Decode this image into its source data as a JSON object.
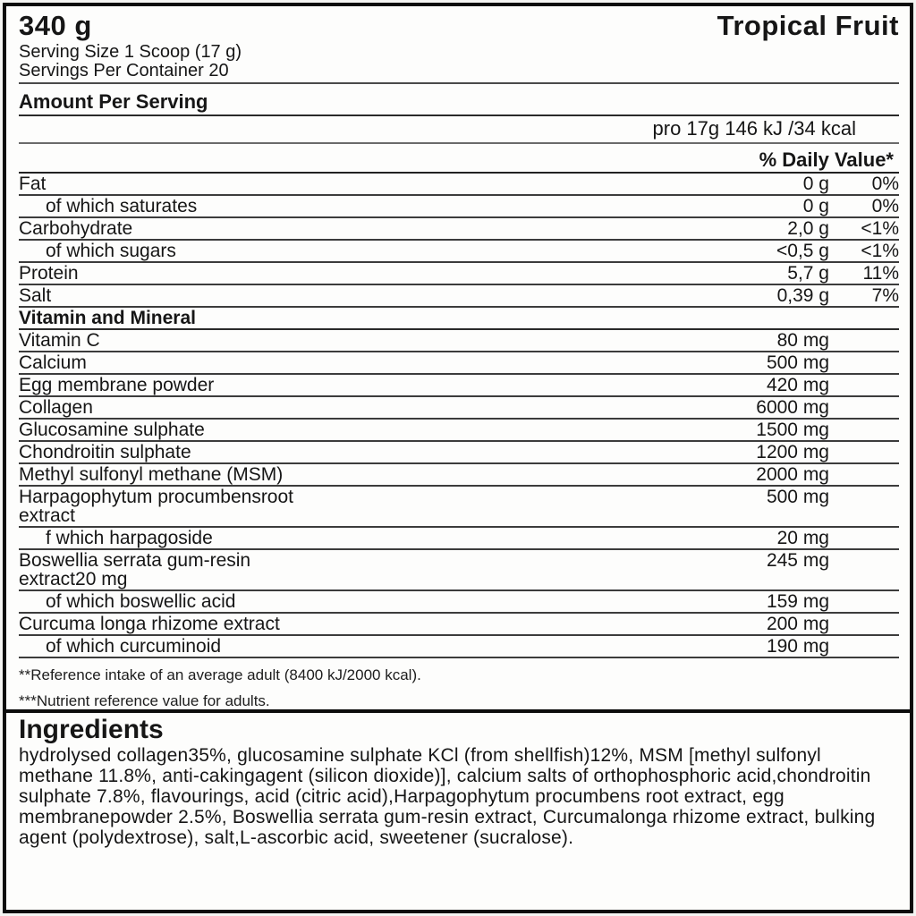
{
  "header": {
    "net_weight": "340 g",
    "flavor": "Tropical Fruit",
    "serving_size": "Serving Size 1 Scoop (17 g)",
    "servings_per_container": "Servings Per Container 20"
  },
  "facts": {
    "amount_per_serving_label": "Amount Per Serving",
    "energy_line": "pro 17g 146 kJ /34 kcal",
    "daily_value_header": "% Daily Value*",
    "macros": [
      {
        "name": "Fat",
        "amount": "0 g",
        "dv": "0%"
      },
      {
        "name": "of which saturates",
        "amount": "0 g",
        "dv": "0%"
      },
      {
        "name": "Carbohydrate",
        "amount": "2,0 g",
        "dv": "<1%"
      },
      {
        "name": "of which sugars",
        "amount": "<0,5 g",
        "dv": "<1%"
      },
      {
        "name": "Protein",
        "amount": "5,7 g",
        "dv": "11%"
      },
      {
        "name": "Salt",
        "amount": "0,39 g",
        "dv": "7%"
      }
    ],
    "vitamin_section_title": "Vitamin and Mineral",
    "minerals": [
      {
        "name": "Vitamin C",
        "amount": "80 mg"
      },
      {
        "name": "Calcium",
        "amount": "500 mg"
      },
      {
        "name": "Egg membrane powder",
        "amount": "420 mg"
      },
      {
        "name": "Collagen",
        "amount": "6000 mg"
      },
      {
        "name": "Glucosamine sulphate",
        "amount": "1500 mg"
      },
      {
        "name": "Chondroitin sulphate",
        "amount": "1200 mg"
      },
      {
        "name": "Methyl sulfonyl methane (MSM)",
        "amount": "2000 mg"
      },
      {
        "name": "Harpagophytum procumbensroot\nextract",
        "amount": "500 mg"
      },
      {
        "name": "f which harpagoside",
        "amount": "20 mg"
      },
      {
        "name": "Boswellia serrata gum-resin\nextract20 mg",
        "amount": "245 mg"
      },
      {
        "name": "of which boswellic acid",
        "amount": "159 mg"
      },
      {
        "name": "Curcuma longa rhizome extract",
        "amount": "200 mg"
      },
      {
        "name": "of which curcuminoid",
        "amount": "190 mg"
      }
    ],
    "footnote_reference": "**Reference intake of an average adult (8400 kJ/2000 kcal).",
    "footnote_nutrient": "***Nutrient reference value for adults."
  },
  "ingredients": {
    "title": "Ingredients",
    "body": "hydrolysed collagen35%, glucosamine sulphate KCl (from shellfish)12%, MSM [methyl sulfonyl methane 11.8%, anti-cakingagent (silicon dioxide)], calcium salts of orthophosphoric acid,chondroitin sulphate 7.8%, flavourings, acid (citric acid),Harpagophytum procumbens root extract, egg membranepowder 2.5%, Boswellia serrata gum-resin extract, Curcumalonga rhizome extract, bulking agent (polydextrose), salt,L-ascorbic acid, sweetener (sucralose)."
  },
  "colors": {
    "border": "#0c0c0c",
    "text": "#161616",
    "background": "#fdfdfc"
  }
}
